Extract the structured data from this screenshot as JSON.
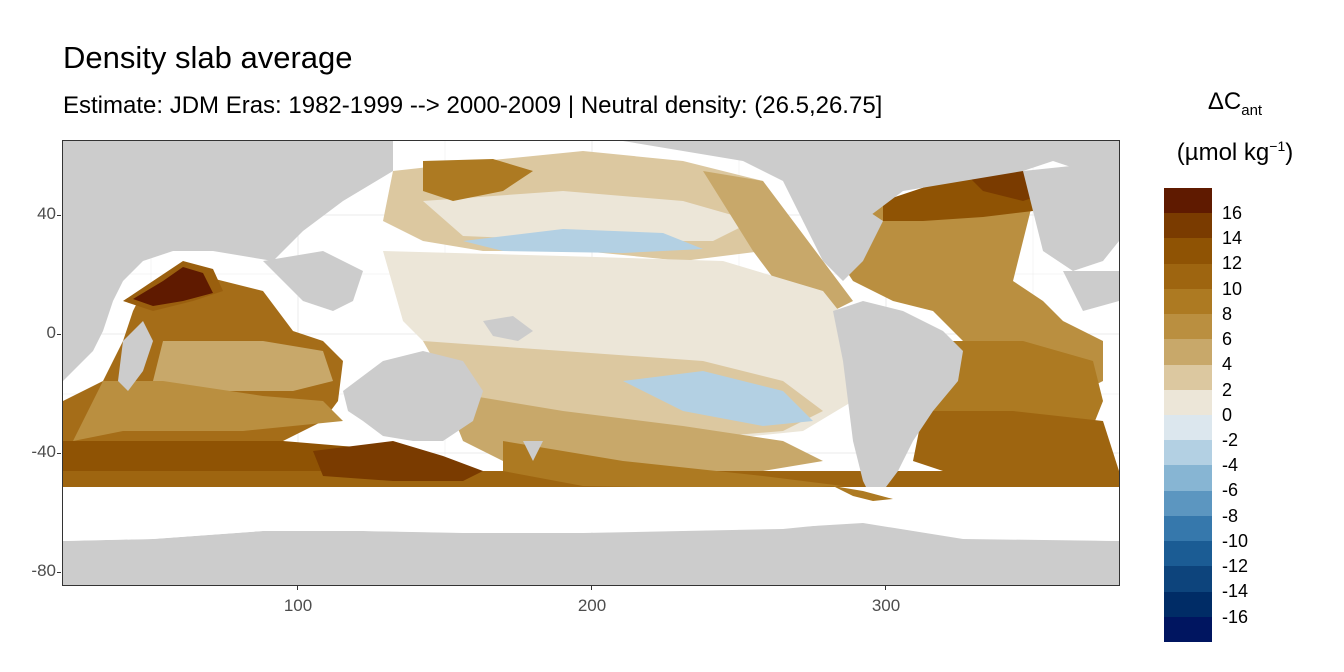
{
  "title": "Density slab average",
  "subtitle": "Estimate: JDM Eras: 1982-1999 --> 2000-2009 | Neutral density: (26.5,26.75]",
  "legend": {
    "title_symbol": "ΔC",
    "title_subscript": "ant",
    "title_units_pre": "(µmol kg",
    "title_units_sup": "−1",
    "title_units_post": ")",
    "labels": [
      "16",
      "14",
      "12",
      "10",
      "8",
      "6",
      "4",
      "2",
      "0",
      "-2",
      "-4",
      "-6",
      "-8",
      "-10",
      "-12",
      "-14",
      "-16"
    ],
    "colors": [
      "#5f1a00",
      "#7a3b00",
      "#8f5304",
      "#9e6510",
      "#ad7a22",
      "#ba8f40",
      "#c8a86a",
      "#dcc8a0",
      "#ece6d8",
      "#dce7ee",
      "#b3d0e3",
      "#87b5d3",
      "#5c96c0",
      "#3678ac",
      "#1b5c94",
      "#0d447c",
      "#002c66",
      "#001560"
    ]
  },
  "colors": {
    "land": "#cccccc",
    "no_data": "#ffffff",
    "grid": "#ebebeb",
    "panel_border": "#333333"
  },
  "axes": {
    "x_ticks": [
      "100",
      "200",
      "300"
    ],
    "y_ticks": [
      "40",
      "0",
      "-40",
      "-80"
    ],
    "x_range": [
      20,
      380
    ],
    "y_range": [
      -85,
      65
    ]
  }
}
